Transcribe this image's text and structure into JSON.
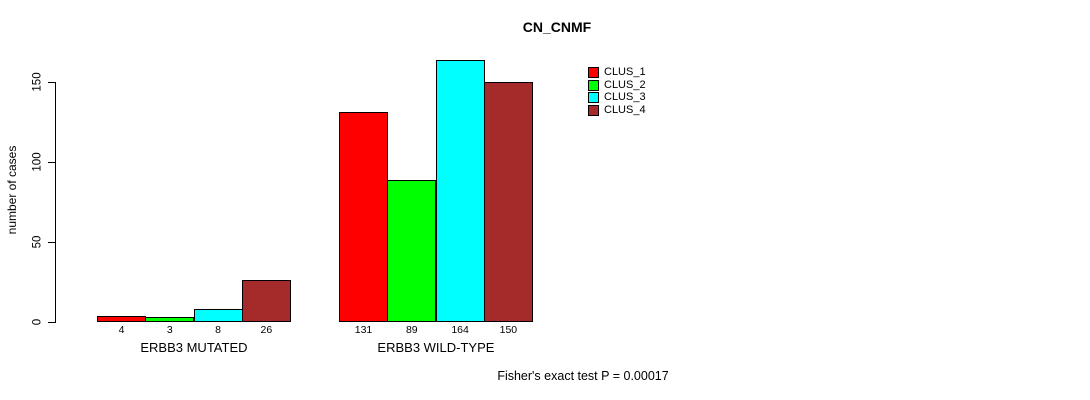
{
  "chart_data": {
    "type": "bar",
    "title": "CN_CNMF",
    "ylabel": "number of cases",
    "xlabel": "",
    "categories": [
      "ERBB3 MUTATED",
      "ERBB3 WILD-TYPE"
    ],
    "series": [
      {
        "name": "CLUS_1",
        "color": "#ff0000",
        "values": [
          4,
          131
        ]
      },
      {
        "name": "CLUS_2",
        "color": "#00ff00",
        "values": [
          3,
          89
        ]
      },
      {
        "name": "CLUS_3",
        "color": "#00ffff",
        "values": [
          8,
          164
        ]
      },
      {
        "name": "CLUS_4",
        "color": "#a52a2a",
        "values": [
          26,
          150
        ]
      }
    ],
    "yticks": [
      0,
      50,
      100,
      150
    ],
    "ylim": [
      0,
      168
    ],
    "grid": false,
    "bar_value_labels_shown": true,
    "legend_position": "top-right",
    "annotation": "Fisher's exact test P = 0.00017"
  }
}
